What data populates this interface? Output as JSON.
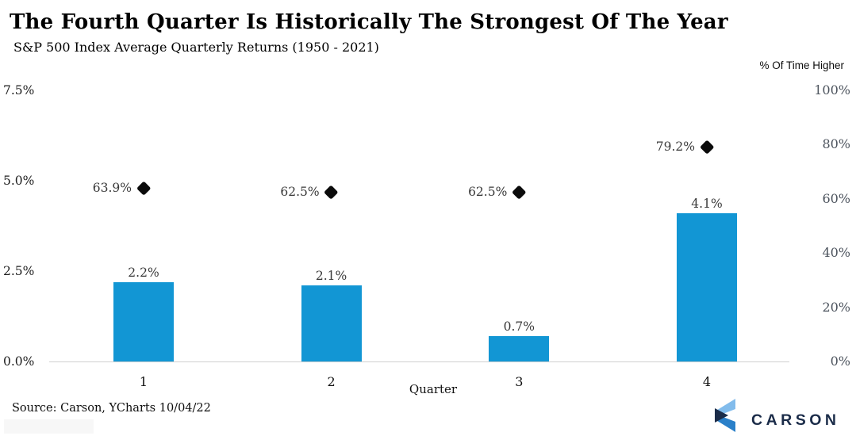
{
  "header": {
    "title": "The Fourth Quarter Is Historically The Strongest Of The Year",
    "subtitle": "S&P 500 Index Average Quarterly Returns (1950 - 2021)",
    "right_axis_title": "% Of Time Higher"
  },
  "chart_data": {
    "type": "bar",
    "categories": [
      "1",
      "2",
      "3",
      "4"
    ],
    "xlabel": "Quarter",
    "series": [
      {
        "name": "Average Quarterly Return",
        "type": "bar",
        "axis": "left",
        "values": [
          2.2,
          2.1,
          0.7,
          4.1
        ],
        "labels": [
          "2.2%",
          "2.1%",
          "0.7%",
          "4.1%"
        ],
        "color": "#1296d4"
      },
      {
        "name": "% Of Time Higher",
        "type": "scatter-diamond",
        "axis": "right",
        "values": [
          63.9,
          62.5,
          62.5,
          79.2
        ],
        "labels": [
          "63.9%",
          "62.5%",
          "62.5%",
          "79.2%"
        ],
        "color": "#0b0b0b"
      }
    ],
    "left_axis": {
      "ticks": [
        "0.0%",
        "2.5%",
        "5.0%",
        "7.5%"
      ],
      "values": [
        0,
        2.5,
        5,
        7.5
      ],
      "range": [
        0,
        7.5
      ]
    },
    "right_axis": {
      "ticks": [
        "0%",
        "20%",
        "40%",
        "60%",
        "80%",
        "100%"
      ],
      "values": [
        0,
        20,
        40,
        60,
        80,
        100
      ],
      "range": [
        0,
        100
      ]
    },
    "grid": "zero-baseline-only",
    "legend_position": "none"
  },
  "footer": {
    "source": "Source: Carson, YCharts 10/04/22",
    "logo_text": "CARSON",
    "logo_icon": "carson-chevron-icon"
  },
  "colors": {
    "bar": "#1296d4",
    "marker": "#0b0b0b",
    "baseline": "#cfcfcf",
    "left_axis_text": "#1d1d1d",
    "right_axis_text": "#4d545e",
    "logo_navy": "#1b2c49",
    "logo_light_blue": "#82bcec",
    "logo_mid_blue": "#2a80c9"
  }
}
